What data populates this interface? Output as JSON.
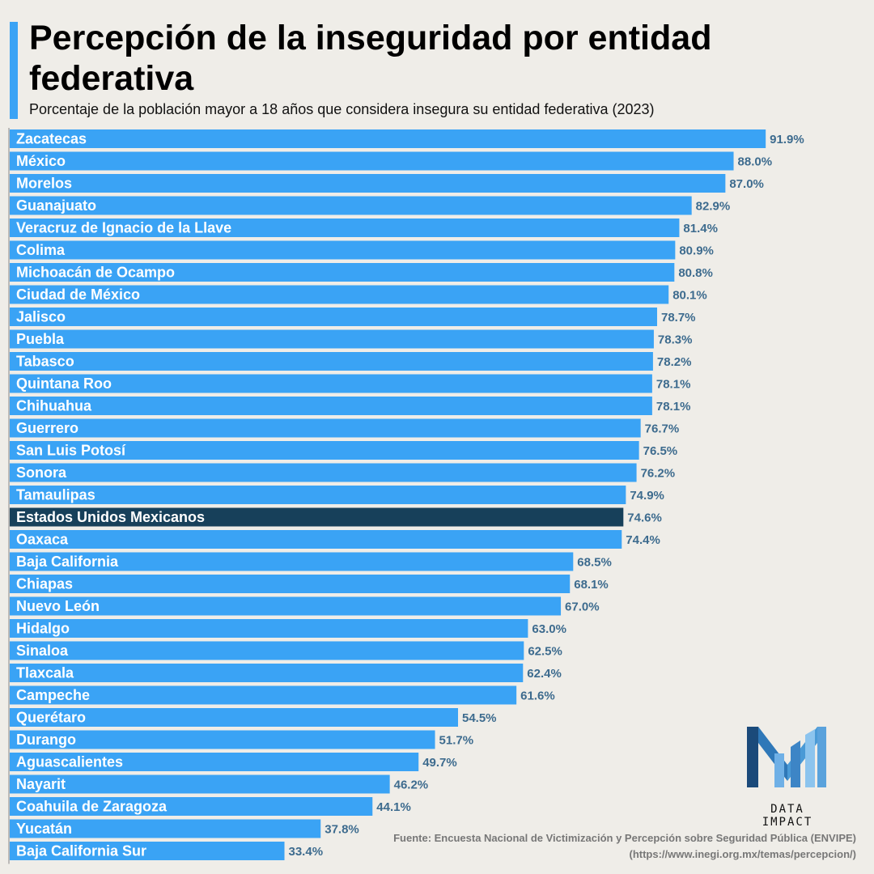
{
  "header": {
    "title": "Percepción de la inseguridad por entidad federativa",
    "subtitle": "Porcentaje de la población mayor a 18 años que considera insegura su entidad federativa (2023)"
  },
  "brand": {
    "name": "DATA IMPACT"
  },
  "footer": {
    "source_line1": "Fuente: Encuesta Nacional de Victimización y Percepción sobre Seguridad Pública (ENVIPE)",
    "source_line2": "(https://www.inegi.org.mx/temas/percepcion/)"
  },
  "colors": {
    "bar": "#3aa3f5",
    "highlight_bar": "#17405a",
    "value_text": "#3d6b8e",
    "background": "#efede8"
  },
  "chart_data": {
    "type": "bar",
    "orientation": "horizontal",
    "title": "Percepción de la inseguridad por entidad federativa",
    "subtitle": "Porcentaje de la población mayor a 18 años que considera insegura su entidad federativa (2023)",
    "value_suffix": "%",
    "highlight": "Estados Unidos Mexicanos",
    "xlim": [
      0,
      100
    ],
    "grid": false,
    "categories": [
      "Zacatecas",
      "México",
      "Morelos",
      "Guanajuato",
      "Veracruz de Ignacio de la Llave",
      "Colima",
      "Michoacán de Ocampo",
      "Ciudad de México",
      "Jalisco",
      "Puebla",
      "Tabasco",
      "Quintana Roo",
      "Chihuahua",
      "Guerrero",
      "San Luis Potosí",
      "Sonora",
      "Tamaulipas",
      "Estados Unidos Mexicanos",
      "Oaxaca",
      "Baja California",
      "Chiapas",
      "Nuevo León",
      "Hidalgo",
      "Sinaloa",
      "Tlaxcala",
      "Campeche",
      "Querétaro",
      "Durango",
      "Aguascalientes",
      "Nayarit",
      "Coahuila de Zaragoza",
      "Yucatán",
      "Baja California Sur"
    ],
    "values": [
      91.9,
      88.0,
      87.0,
      82.9,
      81.4,
      80.9,
      80.8,
      80.1,
      78.7,
      78.3,
      78.2,
      78.1,
      78.1,
      76.7,
      76.5,
      76.2,
      74.9,
      74.6,
      74.4,
      68.5,
      68.1,
      67.0,
      63.0,
      62.5,
      62.4,
      61.6,
      54.5,
      51.7,
      49.7,
      46.2,
      44.1,
      37.8,
      33.4
    ]
  }
}
